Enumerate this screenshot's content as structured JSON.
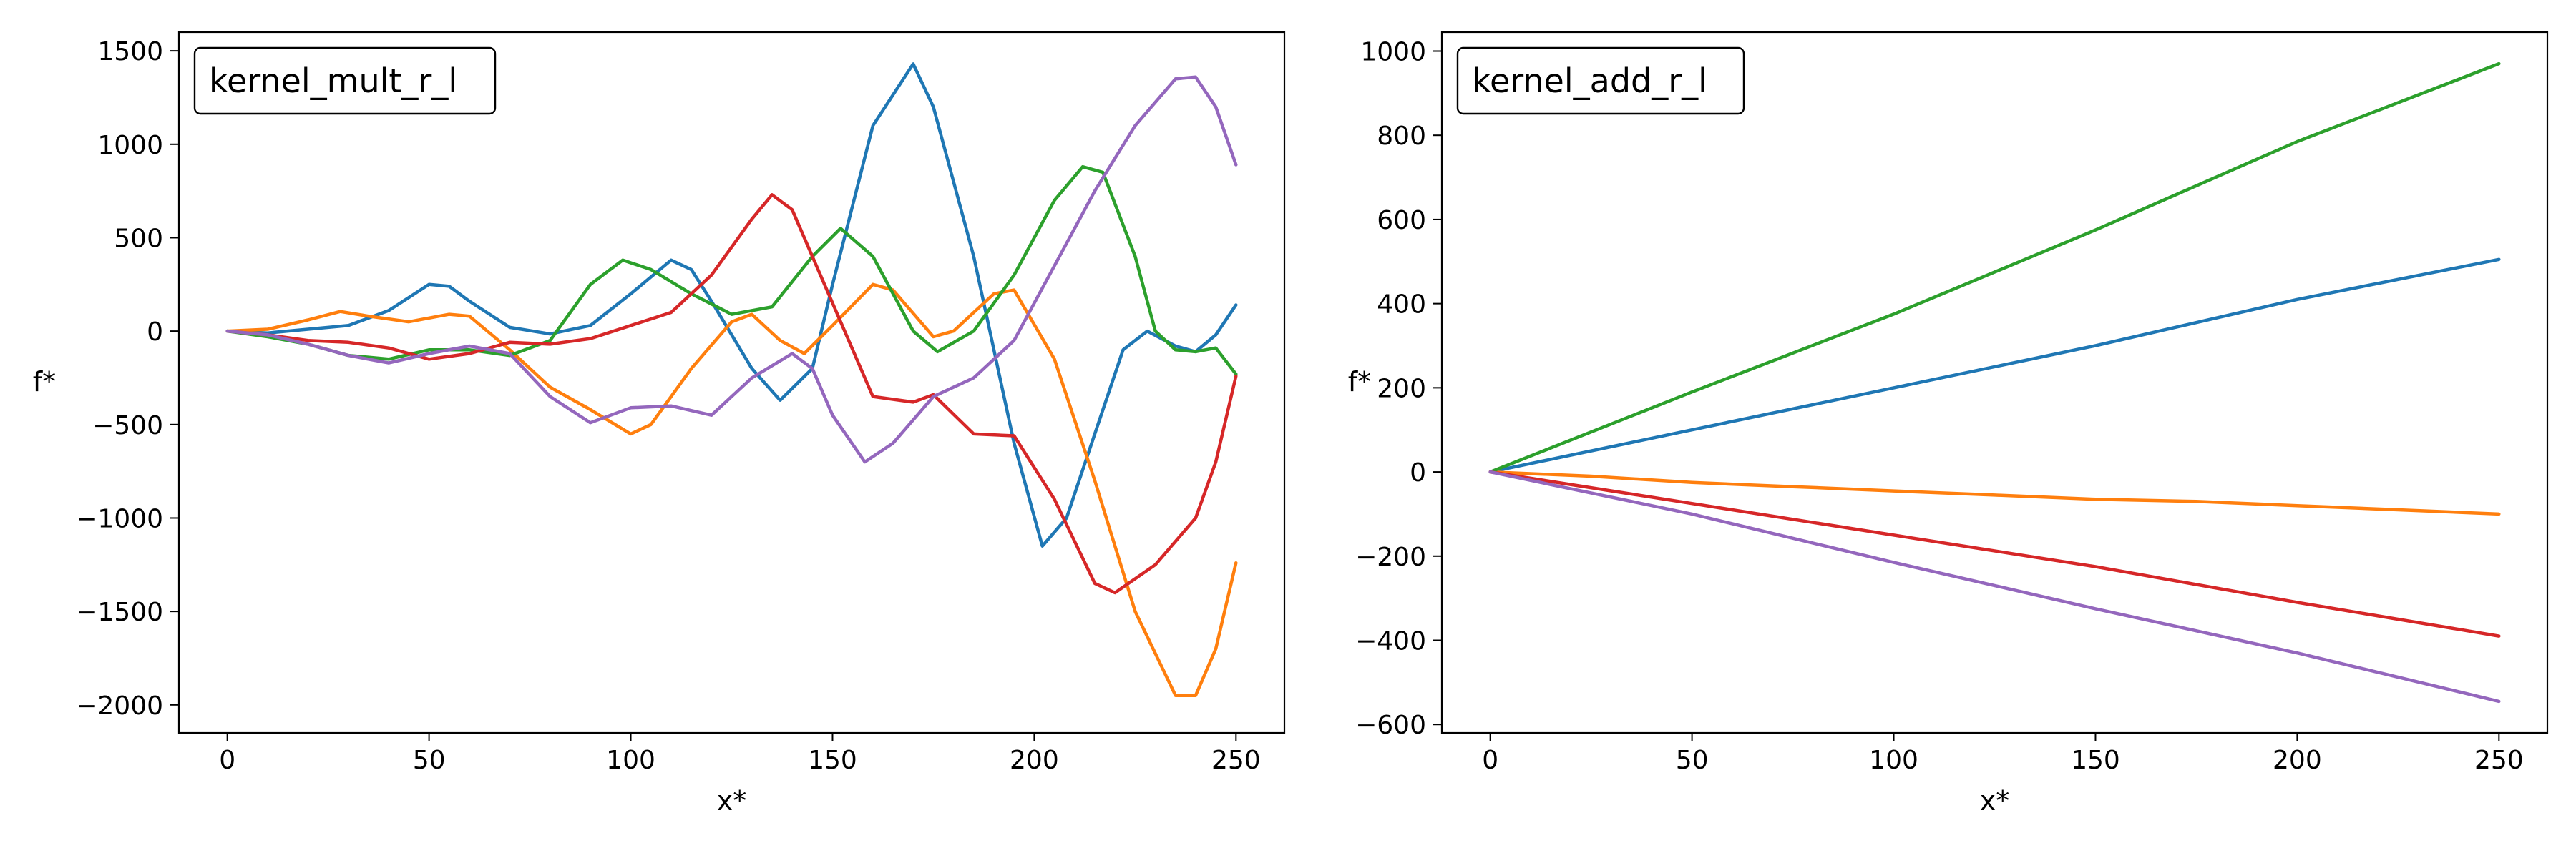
{
  "colors": [
    "#1f77b4",
    "#ff7f0e",
    "#2ca02c",
    "#d62728",
    "#9467bd"
  ],
  "chart_data": [
    {
      "type": "line",
      "legend": "kernel_mult_r_l",
      "xlabel": "x*",
      "ylabel": "f*",
      "xlim": [
        -12,
        262
      ],
      "ylim": [
        -2150,
        1600
      ],
      "xticks": [
        0,
        50,
        100,
        150,
        200,
        250
      ],
      "yticks": [
        -2000,
        -1500,
        -1000,
        -500,
        0,
        500,
        1000,
        1500
      ],
      "series": [
        {
          "points": [
            [
              0,
              0
            ],
            [
              10,
              -10
            ],
            [
              20,
              10
            ],
            [
              30,
              30
            ],
            [
              40,
              110
            ],
            [
              50,
              250
            ],
            [
              55,
              240
            ],
            [
              60,
              160
            ],
            [
              70,
              20
            ],
            [
              80,
              -15
            ],
            [
              90,
              30
            ],
            [
              100,
              200
            ],
            [
              110,
              380
            ],
            [
              115,
              330
            ],
            [
              120,
              160
            ],
            [
              130,
              -200
            ],
            [
              137,
              -370
            ],
            [
              145,
              -200
            ],
            [
              150,
              250
            ],
            [
              160,
              1100
            ],
            [
              170,
              1430
            ],
            [
              175,
              1200
            ],
            [
              185,
              400
            ],
            [
              195,
              -600
            ],
            [
              202,
              -1150
            ],
            [
              208,
              -1000
            ],
            [
              215,
              -550
            ],
            [
              222,
              -100
            ],
            [
              228,
              0
            ],
            [
              235,
              -80
            ],
            [
              240,
              -110
            ],
            [
              245,
              -20
            ],
            [
              250,
              140
            ]
          ]
        },
        {
          "points": [
            [
              0,
              0
            ],
            [
              10,
              10
            ],
            [
              20,
              60
            ],
            [
              28,
              105
            ],
            [
              35,
              80
            ],
            [
              45,
              50
            ],
            [
              55,
              90
            ],
            [
              60,
              80
            ],
            [
              70,
              -100
            ],
            [
              80,
              -300
            ],
            [
              90,
              -420
            ],
            [
              100,
              -550
            ],
            [
              105,
              -500
            ],
            [
              115,
              -200
            ],
            [
              125,
              50
            ],
            [
              130,
              90
            ],
            [
              137,
              -50
            ],
            [
              143,
              -120
            ],
            [
              150,
              30
            ],
            [
              160,
              250
            ],
            [
              165,
              220
            ],
            [
              175,
              -30
            ],
            [
              180,
              0
            ],
            [
              190,
              200
            ],
            [
              195,
              220
            ],
            [
              205,
              -150
            ],
            [
              215,
              -800
            ],
            [
              225,
              -1500
            ],
            [
              235,
              -1950
            ],
            [
              240,
              -1950
            ],
            [
              245,
              -1700
            ],
            [
              250,
              -1240
            ]
          ]
        },
        {
          "points": [
            [
              0,
              0
            ],
            [
              10,
              -30
            ],
            [
              20,
              -70
            ],
            [
              30,
              -130
            ],
            [
              40,
              -150
            ],
            [
              50,
              -100
            ],
            [
              60,
              -100
            ],
            [
              70,
              -130
            ],
            [
              80,
              -50
            ],
            [
              90,
              250
            ],
            [
              98,
              380
            ],
            [
              105,
              330
            ],
            [
              115,
              200
            ],
            [
              125,
              90
            ],
            [
              135,
              130
            ],
            [
              145,
              400
            ],
            [
              152,
              550
            ],
            [
              160,
              400
            ],
            [
              170,
              0
            ],
            [
              176,
              -110
            ],
            [
              185,
              0
            ],
            [
              195,
              300
            ],
            [
              205,
              700
            ],
            [
              212,
              880
            ],
            [
              217,
              850
            ],
            [
              225,
              400
            ],
            [
              230,
              0
            ],
            [
              235,
              -100
            ],
            [
              240,
              -110
            ],
            [
              245,
              -90
            ],
            [
              250,
              -230
            ]
          ]
        },
        {
          "points": [
            [
              0,
              0
            ],
            [
              10,
              -20
            ],
            [
              20,
              -50
            ],
            [
              30,
              -60
            ],
            [
              40,
              -90
            ],
            [
              50,
              -150
            ],
            [
              60,
              -120
            ],
            [
              70,
              -60
            ],
            [
              80,
              -70
            ],
            [
              90,
              -40
            ],
            [
              100,
              30
            ],
            [
              110,
              100
            ],
            [
              120,
              300
            ],
            [
              130,
              600
            ],
            [
              135,
              730
            ],
            [
              140,
              650
            ],
            [
              150,
              150
            ],
            [
              160,
              -350
            ],
            [
              170,
              -380
            ],
            [
              175,
              -340
            ],
            [
              185,
              -550
            ],
            [
              195,
              -560
            ],
            [
              205,
              -900
            ],
            [
              215,
              -1350
            ],
            [
              220,
              -1400
            ],
            [
              230,
              -1250
            ],
            [
              240,
              -1000
            ],
            [
              245,
              -700
            ],
            [
              250,
              -240
            ]
          ]
        },
        {
          "points": [
            [
              0,
              0
            ],
            [
              10,
              -20
            ],
            [
              20,
              -70
            ],
            [
              30,
              -130
            ],
            [
              40,
              -170
            ],
            [
              50,
              -120
            ],
            [
              60,
              -80
            ],
            [
              70,
              -120
            ],
            [
              80,
              -350
            ],
            [
              90,
              -490
            ],
            [
              100,
              -410
            ],
            [
              110,
              -400
            ],
            [
              120,
              -450
            ],
            [
              130,
              -250
            ],
            [
              140,
              -120
            ],
            [
              145,
              -200
            ],
            [
              150,
              -450
            ],
            [
              158,
              -700
            ],
            [
              165,
              -600
            ],
            [
              175,
              -350
            ],
            [
              185,
              -250
            ],
            [
              195,
              -50
            ],
            [
              205,
              350
            ],
            [
              215,
              750
            ],
            [
              225,
              1100
            ],
            [
              235,
              1350
            ],
            [
              240,
              1360
            ],
            [
              245,
              1200
            ],
            [
              250,
              890
            ]
          ]
        }
      ]
    },
    {
      "type": "line",
      "legend": "kernel_add_r_l",
      "xlabel": "x*",
      "ylabel": "f*",
      "xlim": [
        -12,
        262
      ],
      "ylim": [
        -620,
        1045
      ],
      "xticks": [
        0,
        50,
        100,
        150,
        200,
        250
      ],
      "yticks": [
        -600,
        -400,
        -200,
        0,
        200,
        400,
        600,
        800,
        1000
      ],
      "series": [
        {
          "points": [
            [
              0,
              0
            ],
            [
              50,
              100
            ],
            [
              100,
              200
            ],
            [
              150,
              300
            ],
            [
              200,
              410
            ],
            [
              250,
              505
            ]
          ]
        },
        {
          "points": [
            [
              0,
              0
            ],
            [
              25,
              -10
            ],
            [
              50,
              -25
            ],
            [
              75,
              -35
            ],
            [
              100,
              -45
            ],
            [
              125,
              -55
            ],
            [
              150,
              -65
            ],
            [
              175,
              -70
            ],
            [
              200,
              -80
            ],
            [
              225,
              -90
            ],
            [
              250,
              -100
            ]
          ]
        },
        {
          "points": [
            [
              0,
              0
            ],
            [
              50,
              190
            ],
            [
              100,
              375
            ],
            [
              150,
              575
            ],
            [
              200,
              785
            ],
            [
              250,
              970
            ]
          ]
        },
        {
          "points": [
            [
              0,
              0
            ],
            [
              50,
              -75
            ],
            [
              100,
              -150
            ],
            [
              150,
              -225
            ],
            [
              200,
              -310
            ],
            [
              250,
              -390
            ]
          ]
        },
        {
          "points": [
            [
              0,
              0
            ],
            [
              50,
              -100
            ],
            [
              100,
              -215
            ],
            [
              150,
              -325
            ],
            [
              200,
              -430
            ],
            [
              250,
              -545
            ]
          ]
        }
      ]
    }
  ]
}
